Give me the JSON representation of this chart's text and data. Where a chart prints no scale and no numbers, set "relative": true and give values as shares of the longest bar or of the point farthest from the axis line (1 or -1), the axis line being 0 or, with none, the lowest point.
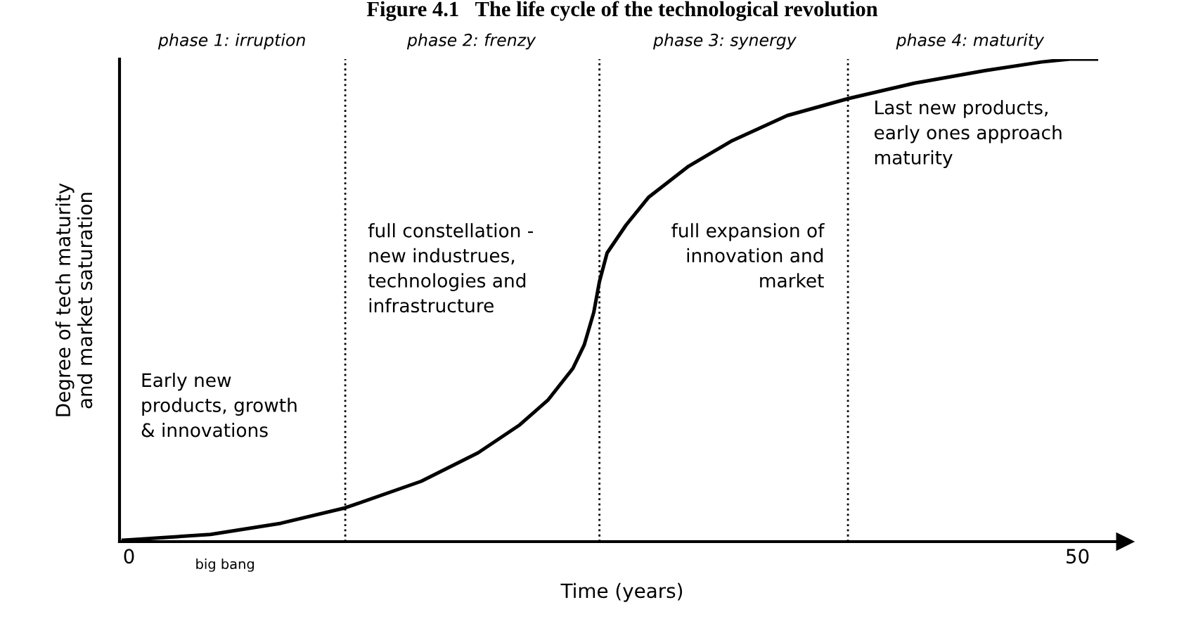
{
  "chart_data": {
    "type": "line",
    "relative": true,
    "title": "Figure 4.1   The life cycle of the technological revolution",
    "xlabel": "Time (years)",
    "ylabel": "Degree of tech maturity\nand market saturation",
    "xlim": [
      -0.5,
      52.5
    ],
    "xticks": [
      0,
      50
    ],
    "tick_labels": "x",
    "grid": false,
    "marker": "none",
    "line_style": "solid",
    "series": [
      {
        "color": "#000000",
        "x": [
          -0.3,
          2.1,
          4.3,
          8.0,
          11.4,
          15.4,
          18.4,
          20.6,
          22.1,
          23.4,
          24.0,
          24.5,
          24.8,
          25.2,
          26.2,
          27.4,
          29.5,
          31.8,
          34.7,
          37.9,
          41.4,
          45.1,
          48.1,
          49.6,
          51.0
        ],
        "values": [
          0.003,
          0.009,
          0.015,
          0.038,
          0.07,
          0.125,
          0.184,
          0.242,
          0.294,
          0.359,
          0.408,
          0.475,
          0.539,
          0.598,
          0.656,
          0.714,
          0.778,
          0.831,
          0.883,
          0.918,
          0.95,
          0.976,
          0.994,
          1.0,
          1.0
        ]
      }
    ],
    "ref_lines": [
      {
        "axis": "x",
        "value": 11.4,
        "line_style": "dotted",
        "color": "#000000"
      },
      {
        "axis": "x",
        "value": 24.8,
        "line_style": "dotted",
        "color": "#000000"
      },
      {
        "axis": "x",
        "value": 37.9,
        "line_style": "dotted",
        "color": "#000000"
      }
    ],
    "annotations": [
      "phase 1: irruption",
      "phase 2: frenzy",
      "phase 3: synergy",
      "phase 4: maturity",
      "Early new\nproducts, growth\n& innovations",
      "full constellation -\nnew industrues,\ntechnologies and\ninfrastructure",
      "full expansion of\ninnovation and\nmarket",
      "Last new products,\nearly ones approach\nmaturity",
      "big bang"
    ]
  }
}
